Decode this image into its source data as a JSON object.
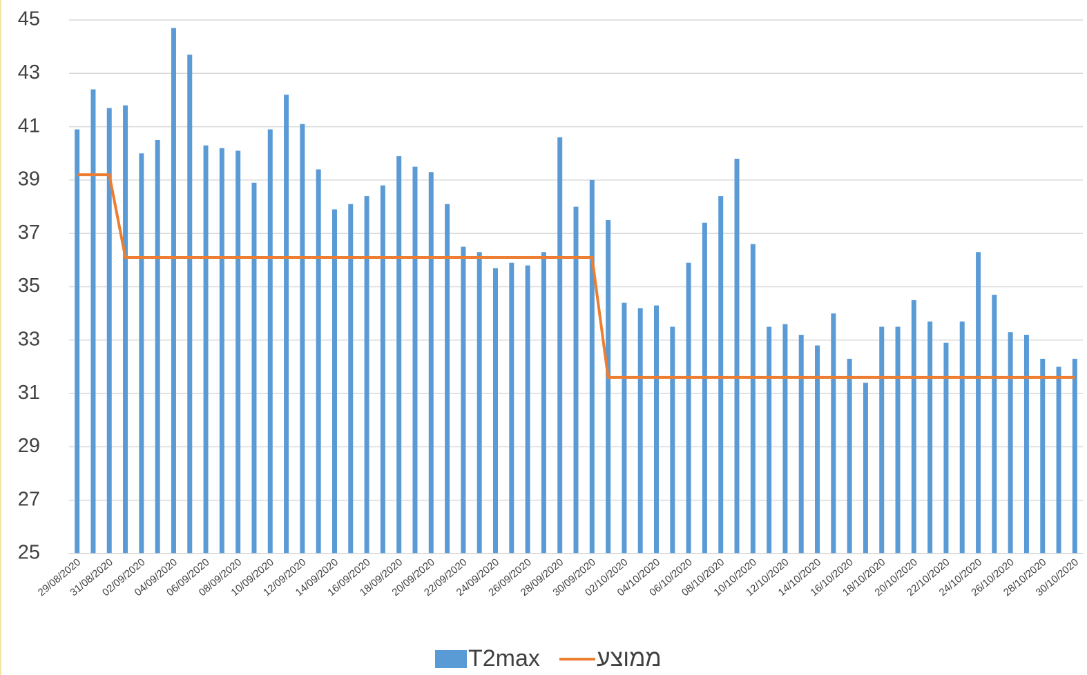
{
  "chart_data": {
    "type": "bar",
    "categories": [
      "29/08/2020",
      null,
      "31/08/2020",
      null,
      "02/09/2020",
      null,
      "04/09/2020",
      null,
      "06/09/2020",
      null,
      "08/09/2020",
      null,
      "10/09/2020",
      null,
      "12/09/2020",
      null,
      "14/09/2020",
      null,
      "16/09/2020",
      null,
      "18/09/2020",
      null,
      "20/09/2020",
      null,
      "22/09/2020",
      null,
      "24/09/2020",
      null,
      "26/09/2020",
      null,
      "28/09/2020",
      null,
      "30/09/2020",
      null,
      "02/10/2020",
      null,
      "04/10/2020",
      null,
      "06/10/2020",
      null,
      "08/10/2020",
      null,
      "10/10/2020",
      null,
      "12/10/2020",
      null,
      "14/10/2020",
      null,
      "16/10/2020",
      null,
      "18/10/2020",
      null,
      "20/10/2020",
      null,
      "22/10/2020",
      null,
      "24/10/2020",
      null,
      "26/10/2020",
      null,
      "28/10/2020",
      null,
      "30/10/2020"
    ],
    "series": [
      {
        "name": "T2max",
        "type": "bar",
        "color": "#5b9bd5",
        "values": [
          40.9,
          42.4,
          41.7,
          41.8,
          40.0,
          40.5,
          44.7,
          43.7,
          40.3,
          40.2,
          40.1,
          38.9,
          40.9,
          42.2,
          41.1,
          39.4,
          37.9,
          38.1,
          38.4,
          38.8,
          39.9,
          39.5,
          39.3,
          38.1,
          36.5,
          36.3,
          35.7,
          35.9,
          35.8,
          36.3,
          40.6,
          38.0,
          39.0,
          37.5,
          34.4,
          34.2,
          34.3,
          33.5,
          35.9,
          37.4,
          38.4,
          39.8,
          36.6,
          33.5,
          33.6,
          33.2,
          32.8,
          34.0,
          32.3,
          31.4,
          33.5,
          33.5,
          34.5,
          33.7,
          32.9,
          33.7,
          36.3,
          34.7,
          33.3,
          33.2,
          32.3,
          32.0,
          32.3
        ]
      },
      {
        "name": "ממוצע",
        "type": "line",
        "color": "#ed7d31",
        "values": [
          39.2,
          39.2,
          39.2,
          36.1,
          36.1,
          36.1,
          36.1,
          36.1,
          36.1,
          36.1,
          36.1,
          36.1,
          36.1,
          36.1,
          36.1,
          36.1,
          36.1,
          36.1,
          36.1,
          36.1,
          36.1,
          36.1,
          36.1,
          36.1,
          36.1,
          36.1,
          36.1,
          36.1,
          36.1,
          36.1,
          36.1,
          36.1,
          36.1,
          31.6,
          31.6,
          31.6,
          31.6,
          31.6,
          31.6,
          31.6,
          31.6,
          31.6,
          31.6,
          31.6,
          31.6,
          31.6,
          31.6,
          31.6,
          31.6,
          31.6,
          31.6,
          31.6,
          31.6,
          31.6,
          31.6,
          31.6,
          31.6,
          31.6,
          31.6,
          31.6,
          31.6,
          31.6,
          31.6
        ]
      }
    ],
    "ylim": [
      25,
      45
    ],
    "yticks": [
      25,
      27,
      29,
      31,
      33,
      35,
      37,
      39,
      41,
      43,
      45
    ],
    "grid": true,
    "legend": "bottom"
  }
}
